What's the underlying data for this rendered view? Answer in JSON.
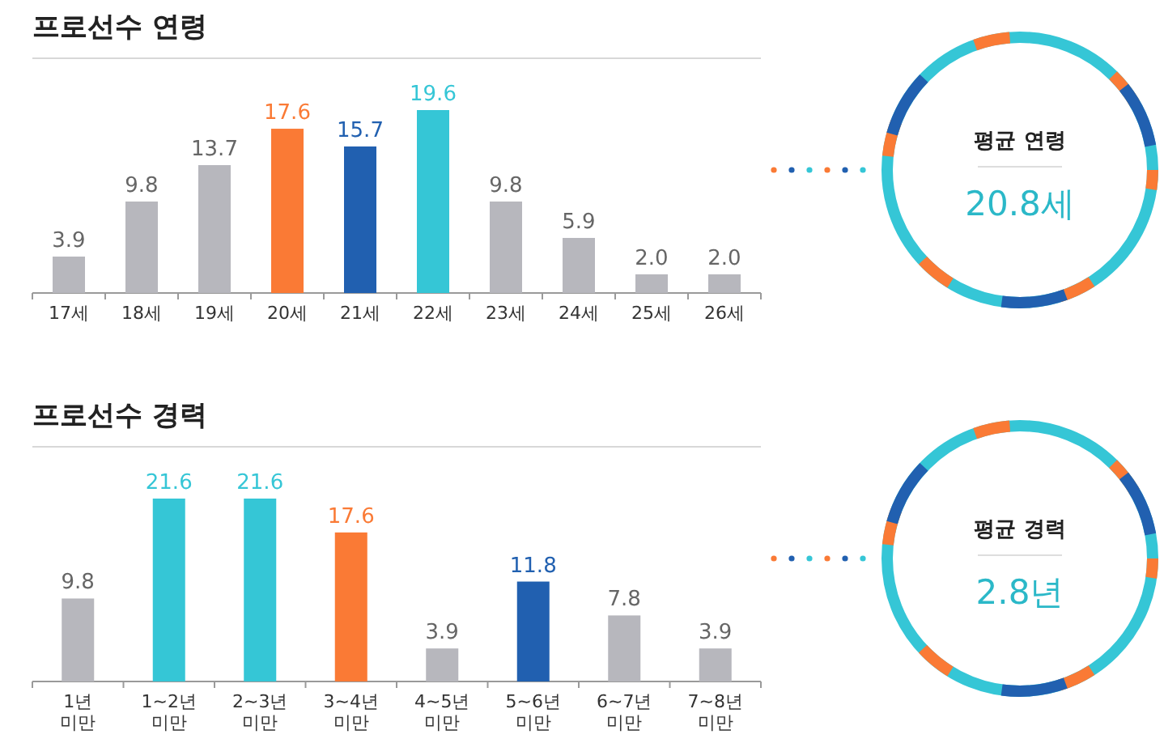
{
  "chart_data": [
    {
      "type": "bar",
      "title": "프로선수 연령",
      "categories": [
        "17세",
        "18세",
        "19세",
        "20세",
        "21세",
        "22세",
        "23세",
        "24세",
        "25세",
        "26세"
      ],
      "values": [
        3.9,
        9.8,
        13.7,
        17.6,
        15.7,
        19.6,
        9.8,
        5.9,
        2.0,
        2.0
      ],
      "colors": [
        "#b7b7bd",
        "#b7b7bd",
        "#b7b7bd",
        "#fa7a35",
        "#2160b0",
        "#35c6d6",
        "#b7b7bd",
        "#b7b7bd",
        "#b7b7bd",
        "#b7b7bd"
      ],
      "value_labels": [
        "3.9",
        "9.8",
        "13.7",
        "17.6",
        "15.7",
        "19.6",
        "9.8",
        "5.9",
        "2.0",
        "2.0"
      ]
    },
    {
      "type": "other",
      "title": "평균 연령",
      "annotations": [
        "20.8세"
      ]
    },
    {
      "type": "bar",
      "title": "프로선수 경력",
      "categories": [
        "1년 미만",
        "1~2년 미만",
        "2~3년 미만",
        "3~4년 미만",
        "4~5년 미만",
        "5~6년 미만",
        "6~7년 미만",
        "7~8년 미만"
      ],
      "values": [
        9.8,
        21.6,
        21.6,
        17.6,
        3.9,
        11.8,
        7.8,
        3.9
      ],
      "colors": [
        "#b7b7bd",
        "#35c6d6",
        "#35c6d6",
        "#fa7a35",
        "#b7b7bd",
        "#2160b0",
        "#b7b7bd",
        "#b7b7bd"
      ],
      "data_labels": true
    },
    {
      "type": "other",
      "title": "평균 경력",
      "annotations": [
        "2.8년"
      ]
    }
  ]
}
